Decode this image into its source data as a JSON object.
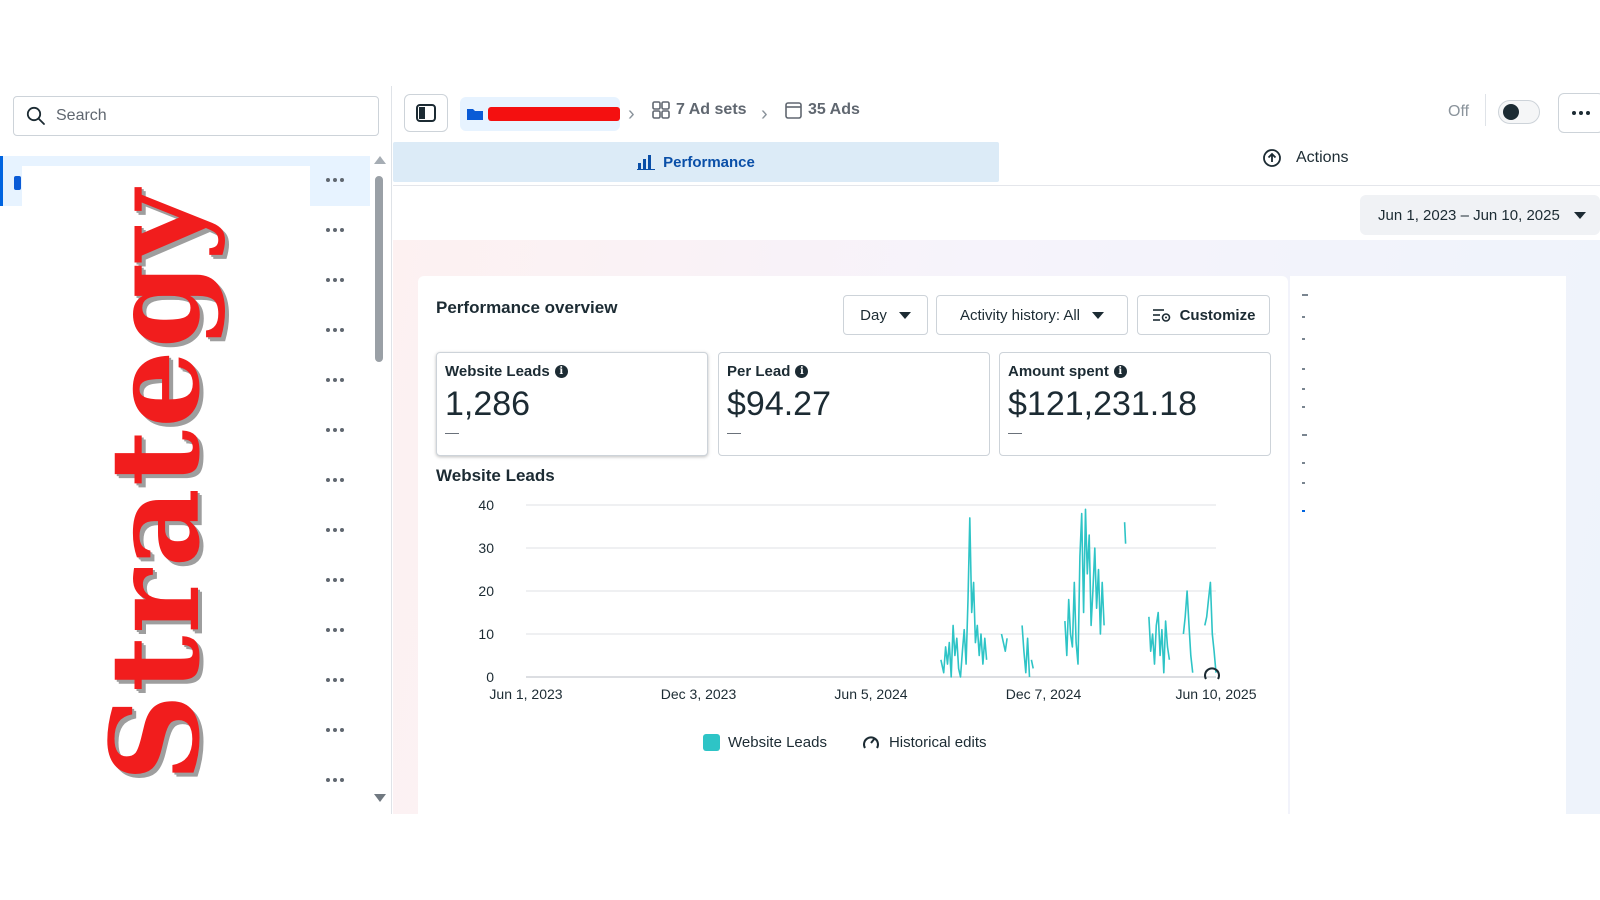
{
  "sidebar": {
    "search_placeholder": "Search",
    "rows": 13,
    "overlay_text": "Strategy"
  },
  "breadcrumb": {
    "ad_sets": "7 Ad sets",
    "ads": "35 Ads"
  },
  "toggle": {
    "label": "Off",
    "state": "off"
  },
  "tabs": {
    "performance": "Performance",
    "actions": "Actions"
  },
  "date_range": "Jun 1, 2023 – Jun 10, 2025",
  "overview": {
    "title": "Performance overview",
    "granularity": "Day",
    "activity_history": "Activity history: All",
    "customize": "Customize"
  },
  "metrics": [
    {
      "label": "Website Leads",
      "value": "1,286",
      "delta": "—"
    },
    {
      "label": "Per Lead",
      "value": "$94.27",
      "delta": "—"
    },
    {
      "label": "Amount spent",
      "value": "$121,231.18",
      "delta": "—"
    }
  ],
  "colors": {
    "accent": "#0a4fa8",
    "series": "#2ec4c6",
    "redaction": "#f41010",
    "overlay_text": "#f11d1d"
  },
  "chart_data": {
    "type": "line",
    "title": "Website Leads",
    "xlabel": "",
    "ylabel": "",
    "x_ticks": [
      "Jun 1, 2023",
      "Dec 3, 2023",
      "Jun 5, 2024",
      "Dec 7, 2024",
      "Jun 10, 2025"
    ],
    "y_ticks": [
      0,
      10,
      20,
      30,
      40
    ],
    "ylim": [
      0,
      40
    ],
    "xlim_days": [
      0,
      740
    ],
    "grid": true,
    "legend_position": "bottom",
    "series": [
      {
        "name": "Website Leads",
        "segments": [
          [
            [
              445,
              4
            ],
            [
              448,
              1
            ],
            [
              450,
              7
            ],
            [
              452,
              3
            ],
            [
              454,
              8
            ],
            [
              456,
              0
            ],
            [
              458,
              12
            ],
            [
              460,
              5
            ],
            [
              462,
              9
            ],
            [
              464,
              2
            ],
            [
              466,
              0
            ],
            [
              468,
              6
            ],
            [
              470,
              11
            ],
            [
              472,
              3
            ],
            [
              474,
              18
            ],
            [
              476,
              37
            ],
            [
              478,
              15
            ],
            [
              480,
              22
            ],
            [
              482,
              8
            ],
            [
              484,
              12
            ],
            [
              486,
              5
            ],
            [
              488,
              10
            ],
            [
              490,
              3
            ],
            [
              492,
              9
            ],
            [
              494,
              4
            ]
          ],
          [
            [
              510,
              10
            ],
            [
              512,
              8
            ],
            [
              514,
              6
            ],
            [
              516,
              9
            ]
          ],
          [
            [
              532,
              12
            ],
            [
              534,
              6
            ],
            [
              536,
              1
            ],
            [
              538,
              9
            ],
            [
              540,
              0
            ]
          ],
          [
            [
              542,
              4
            ],
            [
              544,
              2
            ]
          ],
          [
            [
              578,
              13
            ],
            [
              580,
              5
            ],
            [
              582,
              18
            ],
            [
              584,
              10
            ],
            [
              586,
              7
            ],
            [
              588,
              22
            ],
            [
              590,
              8
            ],
            [
              592,
              3
            ],
            [
              594,
              28
            ],
            [
              596,
              38
            ],
            [
              598,
              15
            ],
            [
              600,
              39
            ],
            [
              602,
              24
            ],
            [
              604,
              33
            ],
            [
              606,
              12
            ],
            [
              608,
              20
            ],
            [
              610,
              30
            ],
            [
              612,
              16
            ],
            [
              614,
              25
            ],
            [
              616,
              10
            ],
            [
              618,
              22
            ],
            [
              620,
              12
            ]
          ],
          [
            [
              642,
              36
            ],
            [
              643,
              31
            ]
          ],
          [
            [
              668,
              14
            ],
            [
              670,
              6
            ],
            [
              672,
              10
            ],
            [
              674,
              3
            ],
            [
              676,
              12
            ],
            [
              678,
              15
            ],
            [
              680,
              5
            ],
            [
              682,
              11
            ],
            [
              684,
              1
            ],
            [
              686,
              13
            ],
            [
              688,
              7
            ],
            [
              690,
              4
            ]
          ],
          [
            [
              705,
              10
            ],
            [
              707,
              14
            ],
            [
              709,
              20
            ],
            [
              711,
              12
            ],
            [
              713,
              5
            ],
            [
              715,
              1
            ]
          ],
          [
            [
              728,
              12
            ],
            [
              730,
              14
            ],
            [
              732,
              18
            ],
            [
              734,
              22
            ],
            [
              736,
              10
            ],
            [
              738,
              6
            ],
            [
              740,
              1
            ]
          ]
        ]
      }
    ],
    "historical_edits_markers": [
      {
        "x": 740,
        "y": 0
      }
    ]
  },
  "legend": {
    "series": "Website Leads",
    "edits": "Historical edits"
  }
}
